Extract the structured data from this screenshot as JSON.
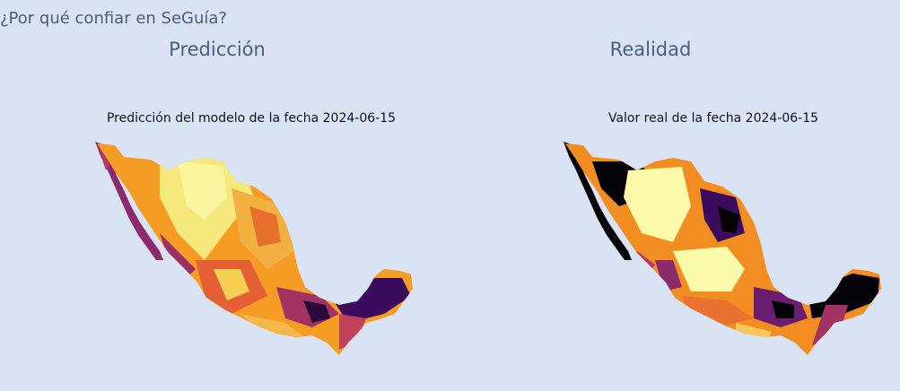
{
  "section": {
    "title": "¿Por qué confiar en SeGuía?"
  },
  "panels": {
    "left": {
      "heading": "Predicción",
      "map_title": "Predicción del modelo de la fecha 2024-06-15"
    },
    "right": {
      "heading": "Realidad",
      "map_title": "Valor real de la fecha 2024-06-15"
    }
  },
  "colors": {
    "background": "#dae3f3",
    "heading_text": "#4a5e80",
    "colormap": [
      "#000004",
      "#420a68",
      "#932667",
      "#dd513a",
      "#fca50a",
      "#fcffa4"
    ]
  }
}
